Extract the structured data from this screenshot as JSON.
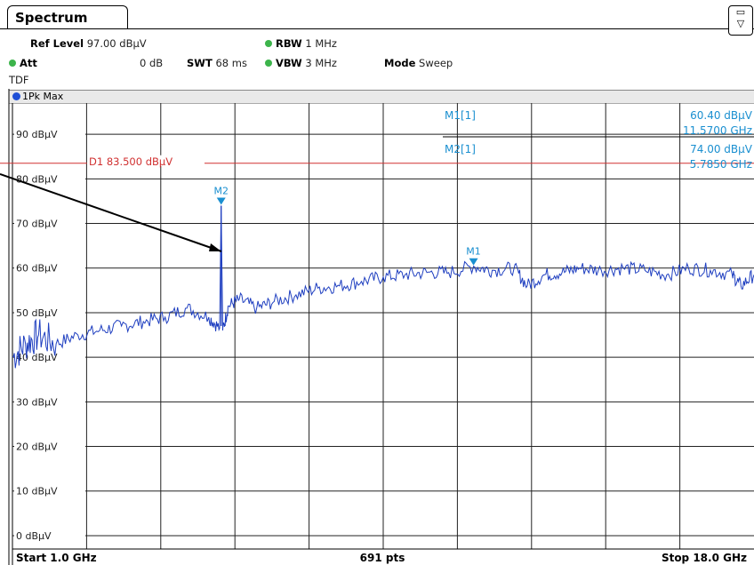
{
  "tab": {
    "title": "Spectrum"
  },
  "header": {
    "ref_level_label": "Ref Level",
    "ref_level_value": "97.00 dBµV",
    "att_label": "Att",
    "att_value": "0 dB",
    "swt_label": "SWT",
    "swt_value": "68 ms",
    "rbw_label": "RBW",
    "rbw_value": "1 MHz",
    "vbw_label": "VBW",
    "vbw_value": "3 MHz",
    "mode_label": "Mode",
    "mode_value": "Sweep",
    "tdf": "TDF"
  },
  "trace": {
    "label": "1Pk Max"
  },
  "colors": {
    "trace": "#1f3fc0",
    "marker": "#1a8fd0",
    "display_line": "#d03030",
    "status_dot": "#3cb44b"
  },
  "chart_data": {
    "type": "line",
    "xlabel": "",
    "ylabel": "",
    "x_start_label": "Start 1.0 GHz",
    "x_stop_label": "Stop 18.0 GHz",
    "points_label": "691 pts",
    "xlim": [
      1.0,
      18.0
    ],
    "ylim": [
      -3,
      97
    ],
    "y_ticks": [
      0,
      10,
      20,
      30,
      40,
      50,
      60,
      70,
      80,
      90
    ],
    "y_tick_labels": [
      "0 dBµV",
      "10 dBµV",
      "20 dBµV",
      "30 dBµV",
      "40 dBµV",
      "50 dBµV",
      "60 dBµV",
      "70 dBµV",
      "80 dBµV",
      "90 dBµV"
    ],
    "grid": true,
    "series": [
      {
        "x": [
          1.0,
          1.3,
          1.6,
          2.0,
          2.5,
          3.0,
          3.5,
          4.0,
          4.5,
          5.0,
          5.5,
          5.75,
          5.785,
          5.82,
          5.95,
          6.2,
          6.6,
          7.0,
          7.5,
          8.0,
          8.5,
          9.0,
          9.5,
          10.0,
          10.5,
          11.0,
          11.57,
          12.0,
          12.5,
          12.8,
          13.2,
          13.6,
          14.0,
          14.5,
          15.0,
          15.5,
          16.0,
          16.5,
          17.0,
          17.5,
          17.7,
          18.0
        ],
        "y": [
          40,
          43,
          45,
          43,
          45,
          46,
          47,
          48,
          49,
          51,
          49,
          46.5,
          74.0,
          46,
          51.5,
          53,
          51,
          52.5,
          54,
          55.5,
          56,
          57,
          58,
          58.5,
          59,
          59,
          60.4,
          59.5,
          60,
          56,
          58.5,
          59,
          60,
          59.5,
          60,
          59.5,
          58.5,
          60,
          59.5,
          58.5,
          56,
          58.5
        ]
      }
    ],
    "display_line": {
      "label": "D1  83.500 dBµV",
      "value": 83.5
    },
    "markers": [
      {
        "name": "M2",
        "x": 5.785,
        "y": 74.0
      },
      {
        "name": "M1",
        "x": 11.57,
        "y": 60.4
      }
    ],
    "marker_table": [
      {
        "label": "M1[1]",
        "level": "60.40 dBµV",
        "freq": "11.5700 GHz"
      },
      {
        "label": "M2[1]",
        "level": "74.00 dBµV",
        "freq": "5.7850 GHz"
      }
    ]
  }
}
